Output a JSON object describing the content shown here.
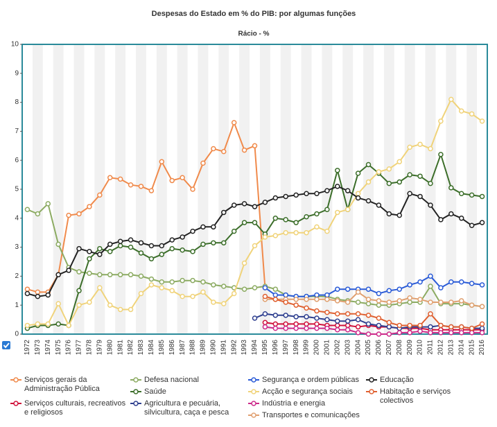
{
  "chart_data": {
    "type": "line",
    "title": "Despesas do Estado em % do PIB: por algumas funções",
    "subtitle": "Rácio - %",
    "categories": [
      "1972",
      "1973",
      "1974",
      "1975",
      "1976",
      "1977",
      "1978",
      "1979",
      "1980",
      "1981",
      "1982",
      "1983",
      "1984",
      "1985",
      "1986",
      "1987",
      "1988",
      "1989",
      "1990",
      "1991",
      "1992",
      "1993",
      "1994",
      "1995",
      "1996",
      "1997",
      "1998",
      "1999",
      "2000",
      "2001",
      "2002",
      "2003",
      "2004",
      "2005",
      "2006",
      "2007",
      "2008",
      "2009",
      "2010",
      "2011",
      "2012",
      "2013",
      "2014",
      "2015",
      "2016"
    ],
    "ylim": [
      0,
      10
    ],
    "yticks": [
      0,
      1,
      2,
      3,
      4,
      5,
      6,
      7,
      8,
      9,
      10
    ],
    "grid": false,
    "series": [
      {
        "name": "Serviços gerais da Administração Pública",
        "color": "#f08a4b",
        "values": [
          1.55,
          1.45,
          1.45,
          2.05,
          4.1,
          4.15,
          4.4,
          4.8,
          5.4,
          5.35,
          5.15,
          5.1,
          4.95,
          5.95,
          5.3,
          5.4,
          5.0,
          5.9,
          6.4,
          6.3,
          7.3,
          6.35,
          6.5,
          1.6,
          null,
          null,
          null,
          null,
          null,
          null,
          null,
          null,
          null,
          null,
          null,
          null,
          null,
          null,
          null,
          null,
          null,
          null,
          null,
          null,
          null
        ]
      },
      {
        "name": "Serviços culturais, recreativos e religiosos",
        "color": "#d0103a",
        "values": [
          null,
          null,
          null,
          null,
          null,
          null,
          null,
          null,
          null,
          null,
          null,
          null,
          null,
          null,
          null,
          null,
          null,
          null,
          null,
          null,
          null,
          null,
          null,
          0.4,
          0.35,
          0.35,
          0.35,
          0.35,
          0.35,
          0.3,
          0.3,
          0.3,
          0.25,
          0.3,
          0.25,
          0.25,
          0.2,
          0.2,
          0.2,
          0.15,
          0.15,
          0.15,
          0.15,
          0.15,
          0.15
        ]
      },
      {
        "name": "Defesa nacional",
        "color": "#8cab62",
        "values": [
          4.3,
          4.15,
          4.5,
          3.1,
          2.3,
          2.15,
          2.1,
          2.05,
          2.05,
          2.05,
          2.05,
          2.0,
          1.9,
          1.8,
          1.8,
          1.85,
          1.85,
          1.8,
          1.7,
          1.65,
          1.6,
          1.55,
          1.6,
          1.65,
          1.55,
          1.35,
          1.3,
          1.3,
          1.3,
          1.3,
          1.2,
          1.15,
          1.1,
          1.05,
          1.0,
          1.0,
          1.05,
          1.1,
          1.1,
          1.65,
          1.05,
          1.05,
          1.05,
          1.0,
          0.95
        ]
      },
      {
        "name": "Saúde",
        "color": "#3c6e2a",
        "values": [
          0.2,
          0.3,
          0.3,
          0.35,
          0.3,
          1.5,
          2.6,
          2.95,
          2.85,
          3.05,
          3.0,
          2.8,
          2.6,
          2.75,
          2.95,
          2.9,
          2.85,
          3.1,
          3.15,
          3.15,
          3.55,
          3.85,
          3.85,
          3.45,
          4.0,
          3.95,
          3.85,
          4.05,
          4.15,
          4.3,
          5.65,
          4.3,
          5.55,
          5.85,
          5.55,
          5.2,
          5.25,
          5.5,
          5.45,
          5.2,
          6.2,
          5.05,
          4.85,
          4.8,
          4.75
        ]
      },
      {
        "name": "Agricultura e pecuária, silvicultura, caça e pesca",
        "color": "#2e3f8f",
        "values": [
          null,
          null,
          null,
          null,
          null,
          null,
          null,
          null,
          null,
          null,
          null,
          null,
          null,
          null,
          null,
          null,
          null,
          null,
          null,
          null,
          null,
          null,
          0.55,
          0.7,
          0.65,
          0.65,
          0.6,
          0.6,
          0.55,
          0.5,
          0.45,
          0.45,
          0.5,
          0.35,
          0.3,
          0.25,
          0.2,
          0.25,
          0.25,
          0.25,
          0.3,
          0.25,
          0.25,
          0.2,
          0.2
        ]
      },
      {
        "name": "Segurança e ordem públicas",
        "color": "#2a5bd7",
        "values": [
          null,
          null,
          null,
          null,
          null,
          null,
          null,
          null,
          null,
          null,
          null,
          null,
          null,
          null,
          null,
          null,
          null,
          null,
          null,
          null,
          null,
          null,
          null,
          1.6,
          1.35,
          1.35,
          1.3,
          1.3,
          1.35,
          1.35,
          1.55,
          1.55,
          1.55,
          1.55,
          1.4,
          1.5,
          1.55,
          1.7,
          1.8,
          2.0,
          1.6,
          1.8,
          1.8,
          1.75,
          1.7
        ]
      },
      {
        "name": "Acção e segurança sociais",
        "color": "#f0d37a",
        "values": [
          0.3,
          0.35,
          0.35,
          1.05,
          0.3,
          1.0,
          1.1,
          1.6,
          1.0,
          0.85,
          0.85,
          1.4,
          1.7,
          1.6,
          1.5,
          1.3,
          1.3,
          1.45,
          1.1,
          1.05,
          1.4,
          2.45,
          3.05,
          3.35,
          3.4,
          3.5,
          3.5,
          3.5,
          3.7,
          3.55,
          4.2,
          4.3,
          4.85,
          5.25,
          5.6,
          5.7,
          5.95,
          6.45,
          6.55,
          6.4,
          7.35,
          8.1,
          7.7,
          7.6,
          7.35
        ]
      },
      {
        "name": "Indústria e energia",
        "color": "#cc2a8a",
        "values": [
          null,
          null,
          null,
          null,
          null,
          null,
          null,
          null,
          null,
          null,
          null,
          null,
          null,
          null,
          null,
          null,
          null,
          null,
          null,
          null,
          null,
          null,
          null,
          0.25,
          0.2,
          0.2,
          0.2,
          0.2,
          0.2,
          0.2,
          0.15,
          0.15,
          0.05,
          0.0,
          0.0,
          0.0,
          0.05,
          0.05,
          0.1,
          0.05,
          0.05,
          0.05,
          0.05,
          0.05,
          0.05
        ]
      },
      {
        "name": "Transportes e comunicações",
        "color": "#e0a070",
        "values": [
          null,
          null,
          null,
          null,
          null,
          null,
          null,
          null,
          null,
          null,
          null,
          null,
          null,
          null,
          null,
          null,
          null,
          null,
          null,
          null,
          null,
          null,
          null,
          1.2,
          1.2,
          1.2,
          1.2,
          1.2,
          1.2,
          1.2,
          1.15,
          1.1,
          1.45,
          1.2,
          1.15,
          1.1,
          1.15,
          1.25,
          1.2,
          1.1,
          1.1,
          1.1,
          1.15,
          1.0,
          0.95
        ]
      },
      {
        "name": "Educação",
        "color": "#222222",
        "values": [
          1.4,
          1.3,
          1.35,
          2.05,
          2.2,
          2.95,
          2.85,
          2.75,
          3.1,
          3.2,
          3.25,
          3.15,
          3.05,
          3.05,
          3.25,
          3.35,
          3.55,
          3.7,
          3.7,
          4.2,
          4.45,
          4.5,
          4.4,
          4.55,
          4.7,
          4.75,
          4.8,
          4.85,
          4.85,
          4.95,
          5.1,
          4.95,
          4.7,
          4.6,
          4.45,
          4.15,
          4.1,
          4.85,
          4.75,
          4.45,
          3.95,
          4.15,
          4.0,
          3.75,
          3.85
        ]
      },
      {
        "name": "Habitação e serviços colectivos",
        "color": "#e06030",
        "values": [
          null,
          null,
          null,
          null,
          null,
          null,
          null,
          null,
          null,
          null,
          null,
          null,
          null,
          null,
          null,
          null,
          null,
          null,
          null,
          null,
          null,
          null,
          null,
          1.3,
          1.2,
          1.1,
          1.0,
          0.9,
          0.8,
          0.75,
          0.7,
          0.7,
          0.7,
          0.65,
          0.55,
          0.4,
          0.3,
          0.3,
          0.3,
          0.7,
          0.3,
          0.25,
          0.25,
          0.2,
          0.35
        ]
      }
    ]
  }
}
